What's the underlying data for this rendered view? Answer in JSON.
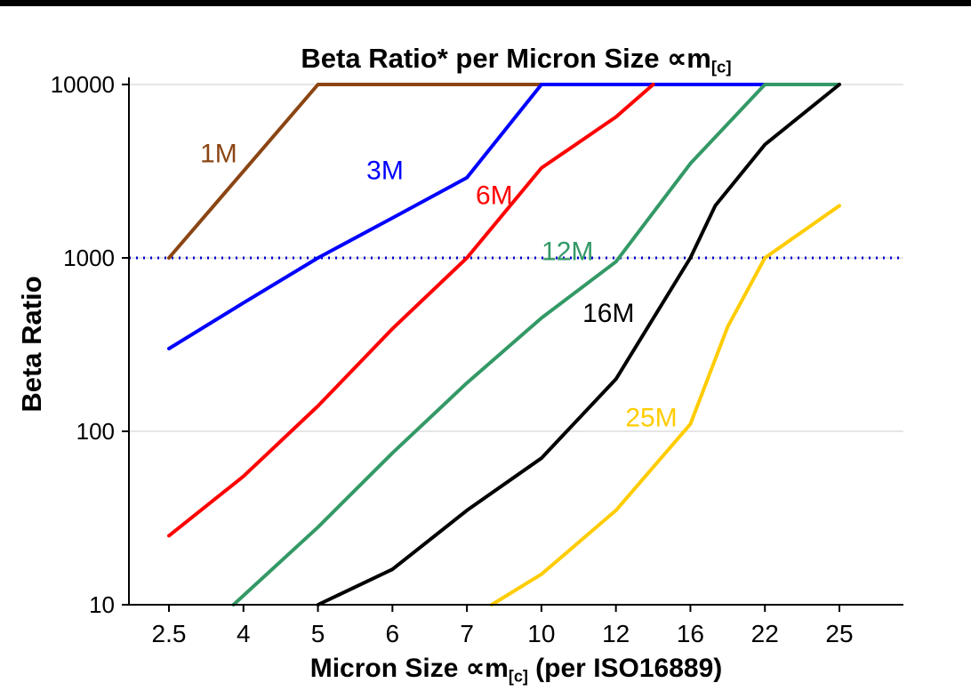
{
  "title": {
    "text": "Beta Ratio* per Micron Size ∝m",
    "sub": "[c]"
  },
  "y_axis": {
    "label": "Beta Ratio",
    "ticks": [
      "10",
      "100",
      "1000",
      "10000"
    ]
  },
  "x_axis": {
    "label_pre": "Micron Size ∝m",
    "label_sub": "[c]",
    "label_post": " (per ISO16889)",
    "ticks": [
      "2.5",
      "4",
      "5",
      "6",
      "7",
      "10",
      "12",
      "16",
      "22",
      "25"
    ]
  },
  "chart_data": {
    "type": "line",
    "title": "Beta Ratio* per Micron Size ∝m[c]",
    "xlabel": "Micron Size ∝m[c] (per ISO16889)",
    "ylabel": "Beta Ratio",
    "x_scale": "categorical",
    "y_scale": "log",
    "ylim": [
      10,
      10000
    ],
    "grid": true,
    "legend": "inline-labels",
    "categories": [
      2.5,
      4,
      5,
      6,
      7,
      10,
      12,
      16,
      22,
      25
    ],
    "reference_line": {
      "y": 1000,
      "color": "#0000cc",
      "style": "dotted"
    },
    "series": [
      {
        "name": "1M",
        "color": "#8B4513",
        "label_at": [
          3.5,
          4000
        ],
        "points": [
          [
            2.5,
            1000
          ],
          [
            5,
            10000
          ],
          [
            10,
            10000
          ]
        ]
      },
      {
        "name": "3M",
        "color": "#0000FF",
        "label_at": [
          5.9,
          3200
        ],
        "points": [
          [
            2.5,
            300
          ],
          [
            4,
            550
          ],
          [
            5,
            1000
          ],
          [
            6,
            1700
          ],
          [
            7,
            2900
          ],
          [
            10,
            10000
          ],
          [
            22,
            10000
          ]
        ]
      },
      {
        "name": "6M",
        "color": "#FF0000",
        "label_at": [
          8.1,
          2300
        ],
        "points": [
          [
            2.5,
            25
          ],
          [
            4,
            55
          ],
          [
            5,
            140
          ],
          [
            6,
            390
          ],
          [
            7,
            1000
          ],
          [
            10,
            3300
          ],
          [
            12,
            6500
          ],
          [
            14,
            10000
          ]
        ]
      },
      {
        "name": "12M",
        "color": "#339966",
        "label_at": [
          10.7,
          1090
        ],
        "points": [
          [
            3.8,
            10
          ],
          [
            5,
            28
          ],
          [
            6,
            75
          ],
          [
            7,
            190
          ],
          [
            10,
            450
          ],
          [
            12,
            950
          ],
          [
            16,
            3500
          ],
          [
            22,
            10000
          ],
          [
            25,
            10000
          ]
        ]
      },
      {
        "name": "16M",
        "color": "#000000",
        "label_at": [
          11.8,
          480
        ],
        "points": [
          [
            5,
            10
          ],
          [
            6,
            16
          ],
          [
            7,
            35
          ],
          [
            10,
            70
          ],
          [
            12,
            200
          ],
          [
            16,
            1000
          ],
          [
            18,
            2000
          ],
          [
            22,
            4500
          ],
          [
            25,
            10000
          ]
        ]
      },
      {
        "name": "25M",
        "color": "#FFCC00",
        "label_at": [
          13.9,
          120
        ],
        "points": [
          [
            8,
            10
          ],
          [
            10,
            15
          ],
          [
            12,
            35
          ],
          [
            16,
            110
          ],
          [
            19,
            400
          ],
          [
            22,
            1000
          ],
          [
            25,
            2000
          ]
        ]
      }
    ]
  }
}
